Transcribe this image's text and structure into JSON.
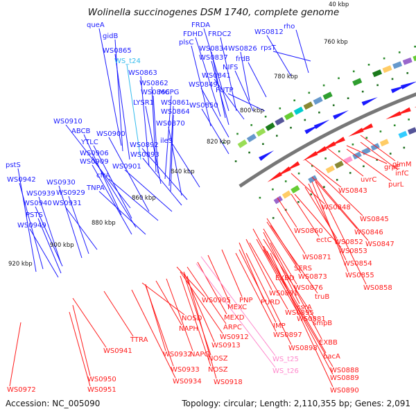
{
  "title": "Wolinella succinogenes DSM 1740, complete genome",
  "accession": "Accession: NC_005090",
  "summary": "Topology: circular; Length: 2,110,355 bp; Genes: 2,091",
  "kbp_marks": [
    "40 kbp",
    "760 kbp",
    "780 kbp",
    "800 kbp",
    "820 kbp",
    "840 kbp",
    "860 kbp",
    "880 kbp",
    "900 kbp",
    "920 kbp"
  ],
  "colors": {
    "plus_strand": "#1a1aff",
    "minus_strand": "#ff1a1a",
    "trna": "#33bbee",
    "rrna": "#ff88cc",
    "backbone": "#777777"
  },
  "plus_labels": [
    "queA",
    "gidB",
    "WS0865",
    "WS_t24",
    "WS0863",
    "WS0862",
    "WS0866",
    "MCPG",
    "LYSR1",
    "WS0861",
    "WS0864",
    "WS0870",
    "FRDA",
    "FDHD",
    "FRDC2",
    "plsC",
    "WS0834",
    "WS0826",
    "WS0837",
    "frdB",
    "NIFS",
    "WS0841",
    "WS0849",
    "PUTP",
    "WS0850",
    "WS0812",
    "rho",
    "rpsT",
    "WS0910",
    "ABCB",
    "YTLC",
    "WS0900",
    "WS0906",
    "WS0909",
    "WS0892",
    "WS0893",
    "ileS",
    "cfrA",
    "WS0901",
    "TNPA",
    "pstS",
    "WS0942",
    "WS0939",
    "WS0930",
    "WS0929",
    "WS0940",
    "WS0931",
    "PSTS",
    "WS0949"
  ],
  "minus_labels": [
    "glmM",
    "infC",
    "grpE",
    "purL",
    "uvrC",
    "WS0843",
    "WS0848",
    "WS0845",
    "WS0846",
    "WS0860",
    "ectC",
    "WS0852",
    "WS0847",
    "WS0853",
    "WS0871",
    "WS0854",
    "SERS",
    "WS0855",
    "WS0873",
    "EXBD",
    "WS0858",
    "WS0876",
    "WS0891",
    "truB",
    "WS0905",
    "PNP",
    "PURD",
    "csrA",
    "MEXC",
    "WS0895",
    "MEXD",
    "WS0881",
    "IMP",
    "ARPC",
    "smpB",
    "WS0897",
    "EXBB",
    "WS0912",
    "NOSD",
    "WS0898",
    "TTRA",
    "NAPH",
    "WS0913",
    "bacA",
    "WS0941",
    "WS0932",
    "NAPG",
    "NOSZ",
    "WS0888",
    "WS0933",
    "WS0889",
    "NOSZ",
    "WS0934",
    "WS0918",
    "WS0890",
    "WS0950",
    "WS0951",
    "WS0972"
  ],
  "rna_labels": [
    "WS_t25",
    "WS_t26"
  ]
}
